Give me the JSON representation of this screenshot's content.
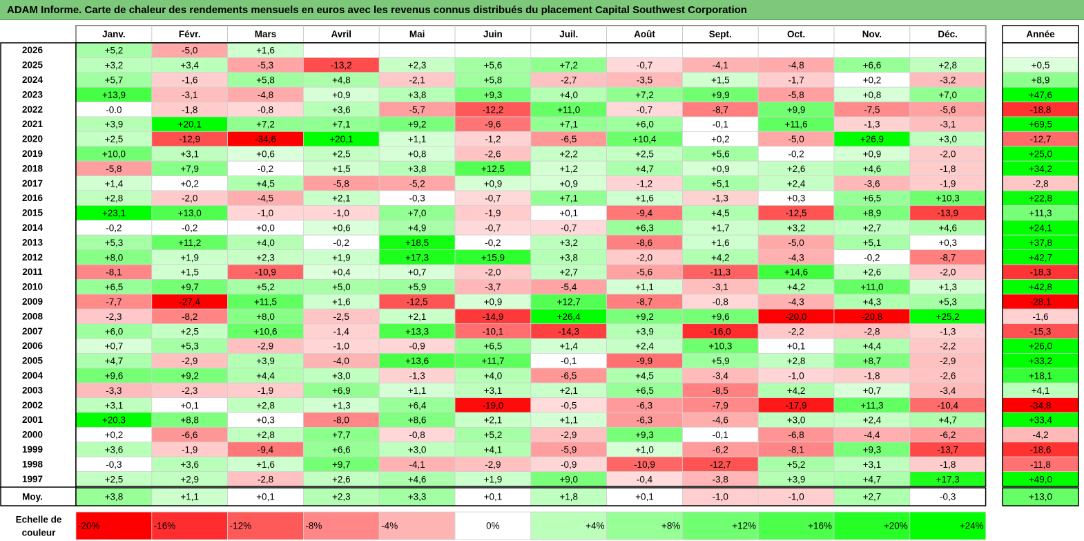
{
  "title": "ADAM Informe. Carte de chaleur des rendements mensuels en euros avec les revenus connus distribués du placement Capital Southwest Corporation",
  "chart_data": {
    "type": "heatmap",
    "months": [
      "Janv.",
      "Févr.",
      "Mars",
      "Avril",
      "Mai",
      "Juin",
      "Juil.",
      "Août",
      "Sept.",
      "Oct.",
      "Nov.",
      "Déc."
    ],
    "year_header": "Année",
    "rows": [
      {
        "year": "2026",
        "values": [
          5.2,
          -5.0,
          1.6,
          null,
          null,
          null,
          null,
          null,
          null,
          null,
          null,
          null
        ],
        "annual": null
      },
      {
        "year": "2025",
        "values": [
          3.2,
          3.4,
          -5.3,
          -13.2,
          2.3,
          5.6,
          7.2,
          -0.7,
          -4.1,
          -4.8,
          6.6,
          2.8
        ],
        "annual": 0.5
      },
      {
        "year": "2024",
        "values": [
          5.7,
          -1.6,
          5.8,
          4.8,
          -2.1,
          5.8,
          -2.7,
          -3.5,
          1.5,
          -1.7,
          0.2,
          -3.2
        ],
        "annual": 8.9
      },
      {
        "year": "2023",
        "values": [
          13.9,
          -3.1,
          -4.8,
          0.9,
          3.8,
          9.3,
          4.0,
          7.2,
          9.9,
          -5.8,
          0.8,
          7.0
        ],
        "annual": 47.6
      },
      {
        "year": "2022",
        "values": [
          "-0.0",
          -1.8,
          -0.8,
          3.6,
          -5.7,
          -12.2,
          11.0,
          -0.7,
          -8.7,
          9.9,
          -7.5,
          -5.6
        ],
        "annual": -18.8
      },
      {
        "year": "2021",
        "values": [
          3.9,
          20.1,
          7.2,
          7.1,
          9.2,
          -9.6,
          7.1,
          6.0,
          -0.1,
          11.6,
          -1.3,
          -3.1
        ],
        "annual": 69.5
      },
      {
        "year": "2020",
        "values": [
          2.5,
          -12.9,
          -34.6,
          20.1,
          1.1,
          -1.2,
          -6.5,
          10.4,
          0.2,
          -5.0,
          26.9,
          3.0
        ],
        "annual": -12.7
      },
      {
        "year": "2019",
        "values": [
          10.0,
          3.1,
          0.6,
          2.5,
          0.8,
          -2.6,
          2.2,
          2.5,
          5.6,
          -0.2,
          0.9,
          -2.0
        ],
        "annual": 25.0
      },
      {
        "year": "2018",
        "values": [
          -5.8,
          7.9,
          -0.2,
          1.5,
          3.8,
          12.5,
          1.2,
          4.7,
          0.9,
          2.6,
          4.6,
          -1.8
        ],
        "annual": 34.2
      },
      {
        "year": "2017",
        "values": [
          1.4,
          0.2,
          4.5,
          -5.8,
          -5.2,
          0.9,
          0.9,
          -1.2,
          5.1,
          2.4,
          -3.6,
          -1.9
        ],
        "annual": -2.8
      },
      {
        "year": "2016",
        "values": [
          2.8,
          -2.0,
          -4.5,
          2.1,
          -0.3,
          -0.7,
          7.1,
          1.6,
          -1.3,
          0.3,
          6.5,
          10.3
        ],
        "annual": 22.8
      },
      {
        "year": "2015",
        "values": [
          23.1,
          13.0,
          -1.0,
          -1.0,
          7.0,
          -1.9,
          0.1,
          -9.4,
          4.5,
          -12.5,
          8.9,
          -13.9
        ],
        "annual": 11.3
      },
      {
        "year": "2014",
        "values": [
          -0.2,
          -0.2,
          0.0,
          0.6,
          4.9,
          -0.7,
          -0.7,
          6.3,
          1.7,
          3.2,
          2.7,
          4.6
        ],
        "annual": 24.1
      },
      {
        "year": "2013",
        "values": [
          5.3,
          11.2,
          4.0,
          -0.2,
          18.5,
          -0.2,
          3.2,
          -8.6,
          1.6,
          -5.0,
          5.1,
          0.3
        ],
        "annual": 37.8
      },
      {
        "year": "2012",
        "values": [
          8.0,
          1.9,
          2.3,
          1.9,
          17.3,
          15.9,
          3.8,
          -2.0,
          4.2,
          -4.3,
          -0.2,
          -8.7
        ],
        "annual": 42.7
      },
      {
        "year": "2011",
        "values": [
          -8.1,
          1.5,
          -10.9,
          0.4,
          0.7,
          -2.0,
          2.7,
          -5.6,
          -11.3,
          14.6,
          2.6,
          -2.0
        ],
        "annual": -18.3
      },
      {
        "year": "2010",
        "values": [
          6.5,
          9.7,
          5.2,
          5.0,
          5.9,
          -3.7,
          -5.4,
          1.1,
          -3.1,
          4.2,
          11.0,
          1.3
        ],
        "annual": 42.8
      },
      {
        "year": "2009",
        "values": [
          -7.7,
          -27.4,
          11.5,
          1.6,
          -12.5,
          0.9,
          12.7,
          -8.7,
          -0.8,
          -4.3,
          4.3,
          5.3
        ],
        "annual": -28.1
      },
      {
        "year": "2008",
        "values": [
          -2.3,
          -8.2,
          8.0,
          -2.5,
          2.1,
          -14.9,
          26.4,
          9.2,
          9.6,
          -20.0,
          -20.8,
          25.2
        ],
        "annual": -1.6
      },
      {
        "year": "2007",
        "values": [
          6.0,
          2.5,
          10.6,
          -1.4,
          13.3,
          -10.1,
          -14.3,
          3.9,
          -16.0,
          -2.2,
          -2.8,
          -1.3
        ],
        "annual": -15.3
      },
      {
        "year": "2006",
        "values": [
          0.7,
          5.3,
          -2.9,
          -1.0,
          -0.9,
          6.5,
          1.4,
          2.4,
          10.3,
          0.1,
          4.4,
          -2.2
        ],
        "annual": 26.0
      },
      {
        "year": "2005",
        "values": [
          4.7,
          -2.9,
          3.9,
          -4.0,
          13.6,
          11.7,
          -0.1,
          -9.9,
          5.9,
          2.8,
          8.7,
          -2.9
        ],
        "annual": 33.2
      },
      {
        "year": "2004",
        "values": [
          9.6,
          9.2,
          4.4,
          3.0,
          -1.3,
          4.0,
          -6.5,
          4.5,
          -3.4,
          -1.0,
          -1.8,
          -2.6
        ],
        "annual": 18.1
      },
      {
        "year": "2003",
        "values": [
          -3.3,
          -2.3,
          -1.9,
          6.9,
          1.1,
          3.1,
          2.1,
          6.5,
          -8.5,
          4.2,
          0.7,
          -3.4
        ],
        "annual": 4.1
      },
      {
        "year": "2002",
        "values": [
          3.1,
          0.1,
          2.8,
          1.3,
          6.4,
          -19.0,
          -0.5,
          -6.3,
          -7.9,
          -17.9,
          11.3,
          -10.4
        ],
        "annual": -34.8
      },
      {
        "year": "2001",
        "values": [
          20.3,
          8.8,
          0.3,
          -8.0,
          8.6,
          2.1,
          1.1,
          -6.3,
          -4.6,
          3.0,
          2.4,
          4.7
        ],
        "annual": 33.4
      },
      {
        "year": "2000",
        "values": [
          0.2,
          -6.6,
          2.8,
          7.7,
          -0.8,
          5.2,
          -2.9,
          9.3,
          -0.1,
          -6.8,
          -4.4,
          -6.2
        ],
        "annual": -4.2
      },
      {
        "year": "1999",
        "values": [
          3.6,
          -1.9,
          -9.4,
          6.6,
          3.0,
          4.1,
          -5.9,
          1.0,
          -6.2,
          -8.1,
          9.3,
          -13.7
        ],
        "annual": -18.6
      },
      {
        "year": "1998",
        "values": [
          -0.3,
          3.6,
          1.6,
          9.7,
          -4.1,
          -2.9,
          -0.9,
          -10.9,
          -12.7,
          5.2,
          3.1,
          -1.8
        ],
        "annual": -11.8
      },
      {
        "year": "1997",
        "values": [
          2.5,
          2.9,
          -2.8,
          2.6,
          4.6,
          1.9,
          9.0,
          -0.4,
          -3.8,
          3.9,
          4.7,
          17.3
        ],
        "annual": 49.0
      }
    ],
    "average": {
      "label": "Moy.",
      "values": [
        3.8,
        1.1,
        0.1,
        2.3,
        3.3,
        0.1,
        1.8,
        0.1,
        -1.0,
        -1.0,
        2.7,
        -0.3
      ],
      "annual": 13.0
    },
    "color_scale": {
      "label_line1": "Echelle de",
      "label_line2": "couleur",
      "steps": [
        "-20%",
        "-16%",
        "-12%",
        "-8%",
        "-4%",
        "0%",
        "+4%",
        "+8%",
        "+12%",
        "+16%",
        "+20%",
        "+24%"
      ]
    },
    "colors": {
      "negative": "#ff0000",
      "positive": "#00ff00",
      "neutral": "#ffffff",
      "title_bg": "#7dc87a"
    }
  }
}
